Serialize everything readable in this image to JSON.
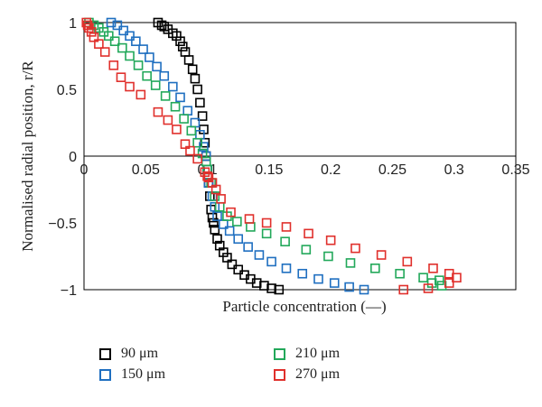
{
  "chart_data": {
    "type": "scatter",
    "xlabel": "Particle concentration (—)",
    "ylabel": "Normalised radial position, r/R",
    "xlim": [
      0,
      0.35
    ],
    "ylim": [
      -1,
      1
    ],
    "x_ticks": [
      "0",
      "0.05",
      "0.1",
      "0.15",
      "0.2",
      "0.25",
      "0.3",
      "0.35"
    ],
    "y_ticks": [
      "1",
      "0.5",
      "0",
      "−0.5",
      "−1"
    ],
    "grid": false,
    "legend_placement": "bottom",
    "series": [
      {
        "name": "90 μm",
        "color": "#000000",
        "points": [
          [
            0.06,
            1.0
          ],
          [
            0.063,
            0.98
          ],
          [
            0.065,
            0.97
          ],
          [
            0.068,
            0.95
          ],
          [
            0.072,
            0.92
          ],
          [
            0.075,
            0.9
          ],
          [
            0.078,
            0.86
          ],
          [
            0.08,
            0.82
          ],
          [
            0.082,
            0.78
          ],
          [
            0.085,
            0.72
          ],
          [
            0.088,
            0.65
          ],
          [
            0.09,
            0.58
          ],
          [
            0.092,
            0.5
          ],
          [
            0.094,
            0.4
          ],
          [
            0.096,
            0.3
          ],
          [
            0.097,
            0.2
          ],
          [
            0.098,
            0.1
          ],
          [
            0.099,
            0.0
          ],
          [
            0.1,
            -0.1
          ],
          [
            0.101,
            -0.2
          ],
          [
            0.102,
            -0.3
          ],
          [
            0.103,
            -0.4
          ],
          [
            0.104,
            -0.46
          ],
          [
            0.105,
            -0.5
          ],
          [
            0.106,
            -0.55
          ],
          [
            0.108,
            -0.62
          ],
          [
            0.11,
            -0.67
          ],
          [
            0.113,
            -0.72
          ],
          [
            0.116,
            -0.76
          ],
          [
            0.12,
            -0.81
          ],
          [
            0.125,
            -0.85
          ],
          [
            0.13,
            -0.89
          ],
          [
            0.135,
            -0.92
          ],
          [
            0.14,
            -0.95
          ],
          [
            0.146,
            -0.97
          ],
          [
            0.152,
            -0.99
          ],
          [
            0.158,
            -1.0
          ]
        ]
      },
      {
        "name": "150 μm",
        "color": "#1f6fc0",
        "points": [
          [
            0.022,
            1.0
          ],
          [
            0.027,
            0.98
          ],
          [
            0.032,
            0.94
          ],
          [
            0.037,
            0.9
          ],
          [
            0.042,
            0.86
          ],
          [
            0.048,
            0.8
          ],
          [
            0.053,
            0.74
          ],
          [
            0.059,
            0.67
          ],
          [
            0.065,
            0.6
          ],
          [
            0.072,
            0.52
          ],
          [
            0.078,
            0.44
          ],
          [
            0.084,
            0.34
          ],
          [
            0.09,
            0.25
          ],
          [
            0.094,
            0.16
          ],
          [
            0.097,
            0.07
          ],
          [
            0.099,
            0.0
          ],
          [
            0.1,
            -0.1
          ],
          [
            0.101,
            -0.2
          ],
          [
            0.104,
            -0.3
          ],
          [
            0.106,
            -0.38
          ],
          [
            0.108,
            -0.45
          ],
          [
            0.113,
            -0.51
          ],
          [
            0.118,
            -0.56
          ],
          [
            0.125,
            -0.62
          ],
          [
            0.133,
            -0.68
          ],
          [
            0.142,
            -0.74
          ],
          [
            0.152,
            -0.79
          ],
          [
            0.164,
            -0.84
          ],
          [
            0.177,
            -0.88
          ],
          [
            0.19,
            -0.92
          ],
          [
            0.203,
            -0.95
          ],
          [
            0.215,
            -0.98
          ],
          [
            0.227,
            -1.0
          ]
        ]
      },
      {
        "name": "210 μm",
        "color": "#22a85a",
        "points": [
          [
            0.004,
            1.0
          ],
          [
            0.008,
            0.98
          ],
          [
            0.012,
            0.96
          ],
          [
            0.016,
            0.93
          ],
          [
            0.02,
            0.9
          ],
          [
            0.025,
            0.86
          ],
          [
            0.031,
            0.81
          ],
          [
            0.037,
            0.75
          ],
          [
            0.044,
            0.68
          ],
          [
            0.051,
            0.6
          ],
          [
            0.058,
            0.53
          ],
          [
            0.066,
            0.45
          ],
          [
            0.074,
            0.37
          ],
          [
            0.081,
            0.28
          ],
          [
            0.087,
            0.19
          ],
          [
            0.092,
            0.1
          ],
          [
            0.096,
            0.02
          ],
          [
            0.099,
            -0.04
          ],
          [
            0.1,
            -0.1
          ],
          [
            0.103,
            -0.2
          ],
          [
            0.106,
            -0.3
          ],
          [
            0.11,
            -0.38
          ],
          [
            0.116,
            -0.45
          ],
          [
            0.124,
            -0.49
          ],
          [
            0.135,
            -0.53
          ],
          [
            0.148,
            -0.58
          ],
          [
            0.163,
            -0.64
          ],
          [
            0.18,
            -0.7
          ],
          [
            0.198,
            -0.75
          ],
          [
            0.216,
            -0.8
          ],
          [
            0.236,
            -0.84
          ],
          [
            0.256,
            -0.88
          ],
          [
            0.275,
            -0.91
          ],
          [
            0.288,
            -0.93
          ],
          [
            0.282,
            -0.95
          ],
          [
            0.29,
            -0.97
          ]
        ]
      },
      {
        "name": "270 μm",
        "color": "#e0302c",
        "points": [
          [
            0.002,
            1.0
          ],
          [
            0.003,
            0.98
          ],
          [
            0.004,
            0.96
          ],
          [
            0.006,
            0.93
          ],
          [
            0.008,
            0.89
          ],
          [
            0.012,
            0.84
          ],
          [
            0.017,
            0.78
          ],
          [
            0.024,
            0.68
          ],
          [
            0.03,
            0.59
          ],
          [
            0.037,
            0.52
          ],
          [
            0.046,
            0.46
          ],
          [
            0.06,
            0.33
          ],
          [
            0.068,
            0.27
          ],
          [
            0.075,
            0.2
          ],
          [
            0.082,
            0.09
          ],
          [
            0.086,
            0.04
          ],
          [
            0.092,
            -0.02
          ],
          [
            0.098,
            -0.12
          ],
          [
            0.1,
            -0.15
          ],
          [
            0.101,
            -0.16
          ],
          [
            0.104,
            -0.2
          ],
          [
            0.107,
            -0.25
          ],
          [
            0.111,
            -0.32
          ],
          [
            0.119,
            -0.42
          ],
          [
            0.134,
            -0.47
          ],
          [
            0.148,
            -0.5
          ],
          [
            0.164,
            -0.53
          ],
          [
            0.182,
            -0.58
          ],
          [
            0.2,
            -0.63
          ],
          [
            0.22,
            -0.69
          ],
          [
            0.241,
            -0.74
          ],
          [
            0.262,
            -0.79
          ],
          [
            0.283,
            -0.84
          ],
          [
            0.296,
            -0.88
          ],
          [
            0.302,
            -0.91
          ],
          [
            0.296,
            -0.95
          ],
          [
            0.279,
            -0.99
          ],
          [
            0.259,
            -1.0
          ]
        ]
      }
    ]
  }
}
